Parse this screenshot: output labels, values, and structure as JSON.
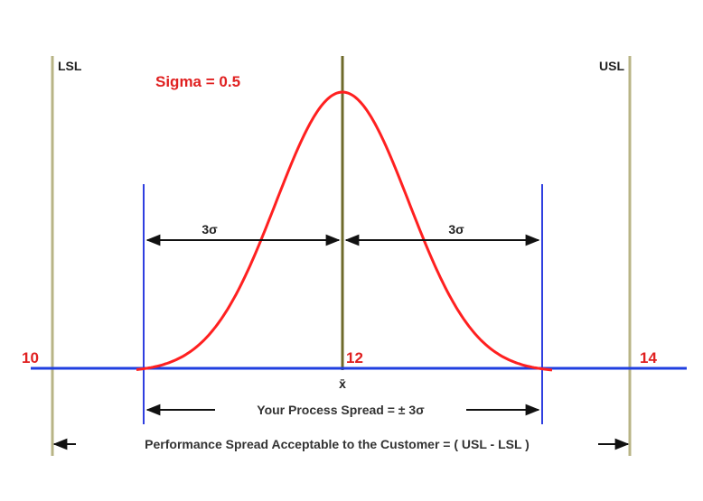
{
  "diagram": {
    "sigma_label": "Sigma = 0.5",
    "lsl_label": "LSL",
    "usl_label": "USL",
    "tick_left": "10",
    "tick_center": "12",
    "tick_right": "14",
    "mean_symbol": "x̄",
    "three_sigma_left": "3σ",
    "three_sigma_right": "3σ",
    "process_spread": "Your Process Spread = ± 3σ",
    "performance_spread": "Performance Spread Acceptable to the Customer = ( USL - LSL )",
    "colors": {
      "curve": "#ff2020",
      "axis": "#1f3fe0",
      "spec_lines": "#b8b486",
      "center_line": "#6e6a2a",
      "sigma_lines": "#2f3fe0",
      "accent_text": "#e02020",
      "arrows": "#111111"
    }
  }
}
